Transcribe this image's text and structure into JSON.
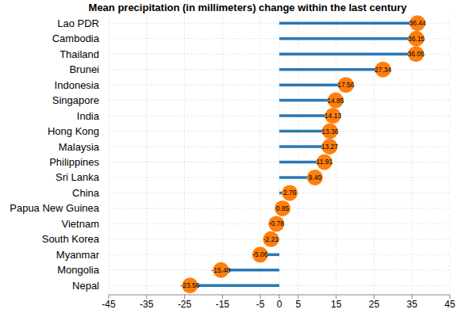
{
  "chart_data": {
    "type": "lollipop",
    "title": "Mean precipitation (in millimeters) change within the last century",
    "orientation": "horizontal",
    "categories": [
      "Lao PDR",
      "Cambodia",
      "Thailand",
      "Brunei",
      "Indonesia",
      "Singapore",
      "India",
      "Hong Kong",
      "Malaysia",
      "Philippines",
      "Sri Lanka",
      "China",
      "Papua New Guinea",
      "Vietnam",
      "South Korea",
      "Myanmar",
      "Mongolia",
      "Nepal"
    ],
    "values": [
      36.44,
      36.15,
      36.05,
      27.34,
      17.56,
      14.85,
      14.13,
      13.36,
      13.27,
      11.91,
      9.4,
      2.76,
      0.85,
      -0.78,
      -2.21,
      -5.06,
      -15.4,
      -23.56
    ],
    "value_labels": [
      "36.44",
      "36.15",
      "36.05",
      "27.34",
      "17.56",
      "14.85",
      "14.13",
      "13.36",
      "13.27",
      "11.91",
      "9.40",
      "2.76",
      "0.85",
      "-0.78",
      "-2.21",
      "-5.06",
      "-15.40",
      "-23.56"
    ],
    "color": "#2878b5",
    "marker": "circle",
    "data_labels": true,
    "grid": true,
    "xlim": [
      -45,
      45
    ],
    "xticks": [
      -45,
      -35,
      -25,
      -15,
      -5,
      0,
      5,
      15,
      25,
      35,
      45
    ]
  }
}
